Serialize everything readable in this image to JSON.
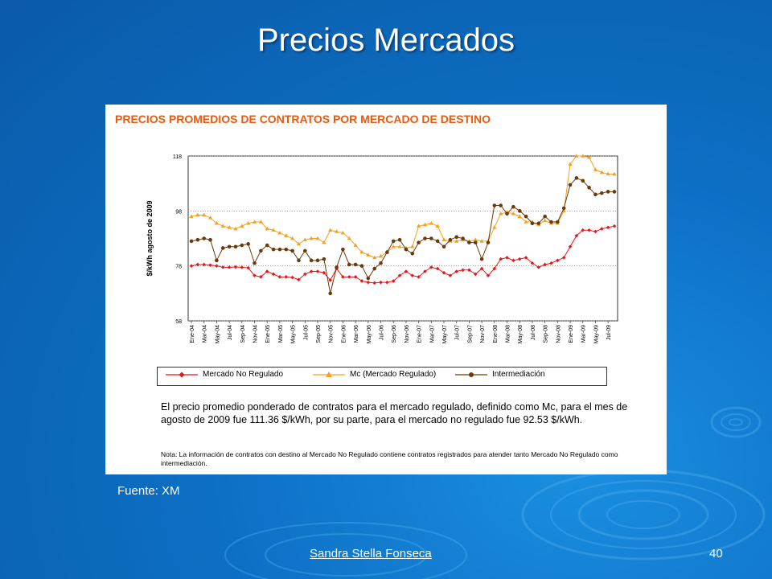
{
  "slide": {
    "title": "Precios Mercados",
    "source": "Fuente: XM",
    "author": "Sandra Stella Fonseca",
    "page": "40"
  },
  "panel": {
    "title": "PRECIOS PROMEDIOS DE CONTRATOS POR MERCADO DE DESTINO",
    "body": "El precio promedio ponderado de contratos para el mercado regulado, definido como Mc, para el mes de agosto de 2009 fue 111.36 $/kWh, por su parte, para el mercado no regulado fue 92.53 $/kWh.",
    "note": "Nota:  La información de contratos con destino al Mercado No Regulado contiene contratos registrados para atender tanto Mercado No Regulado como intermediación."
  },
  "colors": {
    "no_regulado": "#e8161b",
    "regulado": "#f5a020",
    "intermediacion": "#6b3a0a",
    "title_orange": "#e85a10"
  },
  "chart_data": {
    "type": "line",
    "title": "PRECIOS PROMEDIOS DE CONTRATOS POR MERCADO DE DESTINO",
    "ylabel": "$/kWh agosto de 2009",
    "xlabel": "",
    "ylim": [
      58,
      118
    ],
    "yticks": [
      58,
      78,
      98,
      118
    ],
    "grid": true,
    "legend_position": "bottom",
    "x": [
      "Ene-04",
      "Feb-04",
      "Mar-04",
      "Abr-04",
      "May-04",
      "Jun-04",
      "Jul-04",
      "Ago-04",
      "Sep-04",
      "Oct-04",
      "Nov-04",
      "Dic-04",
      "Ene-05",
      "Feb-05",
      "Mar-05",
      "Abr-05",
      "May-05",
      "Jun-05",
      "Jul-05",
      "Ago-05",
      "Sep-05",
      "Oct-05",
      "Nov-05",
      "Dic-05",
      "Ene-06",
      "Feb-06",
      "Mar-06",
      "Abr-06",
      "May-06",
      "Jun-06",
      "Jul-06",
      "Ago-06",
      "Sep-06",
      "Oct-06",
      "Nov-06",
      "Dic-06",
      "Ene-07",
      "Feb-07",
      "Mar-07",
      "Abr-07",
      "May-07",
      "Jun-07",
      "Jul-07",
      "Ago-07",
      "Sep-07",
      "Oct-07",
      "Nov-07",
      "Dic-07",
      "Ene-08",
      "Feb-08",
      "Mar-08",
      "Abr-08",
      "May-08",
      "Jun-08",
      "Jul-08",
      "Ago-08",
      "Sep-08",
      "Oct-08",
      "Nov-08",
      "Dic-08",
      "Ene-09",
      "Feb-09",
      "Mar-09",
      "Abr-09",
      "May-09",
      "Jun-09",
      "Jul-09",
      "Ago-09"
    ],
    "xtick_labels": [
      "Ene-04",
      "Mar-04",
      "May-04",
      "Jul-04",
      "Sep-04",
      "Nov-04",
      "Ene-05",
      "Mar-05",
      "May-05",
      "Jul-05",
      "Sep-05",
      "Nov-05",
      "Ene-06",
      "Mar-06",
      "May-06",
      "Jul-06",
      "Sep-06",
      "Nov-06",
      "Ene-07",
      "Mar-07",
      "May-07",
      "Jul-07",
      "Sep-07",
      "Nov-07",
      "Ene-08",
      "Mar-08",
      "May-08",
      "Jul-08",
      "Sep-08",
      "Nov-08",
      "Ene-09",
      "Mar-09",
      "May-09",
      "Jul-09"
    ],
    "series": [
      {
        "name": "Mercado No Regulado",
        "color": "#e8161b",
        "marker": "diamond",
        "values": [
          78,
          78.5,
          78.5,
          78.3,
          78,
          77.5,
          77.5,
          77.6,
          77.5,
          77.3,
          74.5,
          74,
          76,
          75,
          74,
          74,
          73.8,
          73,
          75,
          76,
          76,
          75.5,
          72.8,
          77,
          74,
          74,
          74,
          72.5,
          72,
          71.8,
          72,
          72,
          72.5,
          74.5,
          76,
          74.5,
          74,
          76,
          77.5,
          77,
          75.5,
          74.5,
          76,
          76.5,
          76.5,
          75,
          77,
          74.5,
          77,
          80.5,
          81,
          80,
          80.5,
          81,
          79,
          77.5,
          78.5,
          79,
          80,
          81,
          85,
          89,
          91,
          91,
          90.5,
          91.5,
          92,
          92.5
        ]
      },
      {
        "name": "Mc (Mercado Regulado)",
        "color": "#f5a020",
        "marker": "triangle",
        "values": [
          96,
          96.5,
          96.5,
          95.5,
          93.5,
          92.5,
          92,
          91.5,
          92.5,
          93.5,
          94,
          94,
          91.5,
          91,
          90,
          89,
          88,
          86,
          87.5,
          88,
          88,
          86.5,
          91,
          90.5,
          90,
          88,
          85.5,
          83,
          82,
          81,
          81.5,
          83,
          85,
          85,
          84.5,
          85,
          92.5,
          93,
          93.5,
          92.5,
          87.5,
          87,
          87,
          87.5,
          87,
          87.5,
          87,
          87,
          92,
          97,
          97.5,
          97,
          96,
          94,
          94,
          93,
          94.5,
          93.5,
          93.5,
          98,
          115,
          118,
          118,
          117.5,
          113,
          112,
          111.5,
          111.4
        ]
      },
      {
        "name": "Intermediación",
        "color": "#6b3a0a",
        "marker": "circle",
        "values": [
          87,
          87.5,
          88,
          87.5,
          80,
          84.5,
          85,
          85,
          85.5,
          86,
          79,
          83.5,
          85.5,
          84,
          84,
          84,
          83.5,
          80,
          83.5,
          80,
          80,
          80.5,
          68,
          77.5,
          84,
          78.5,
          78.5,
          78,
          73.5,
          77,
          79,
          83,
          87,
          87.5,
          84,
          82.5,
          86.5,
          88,
          88,
          87,
          85,
          87.5,
          88.5,
          88,
          86.5,
          86.5,
          80.5,
          86.5,
          100,
          100,
          97,
          99.5,
          98,
          96,
          93.5,
          93.5,
          96,
          94,
          94,
          99,
          107.5,
          110,
          109,
          106.5,
          104,
          104.5,
          105,
          105
        ]
      }
    ]
  }
}
